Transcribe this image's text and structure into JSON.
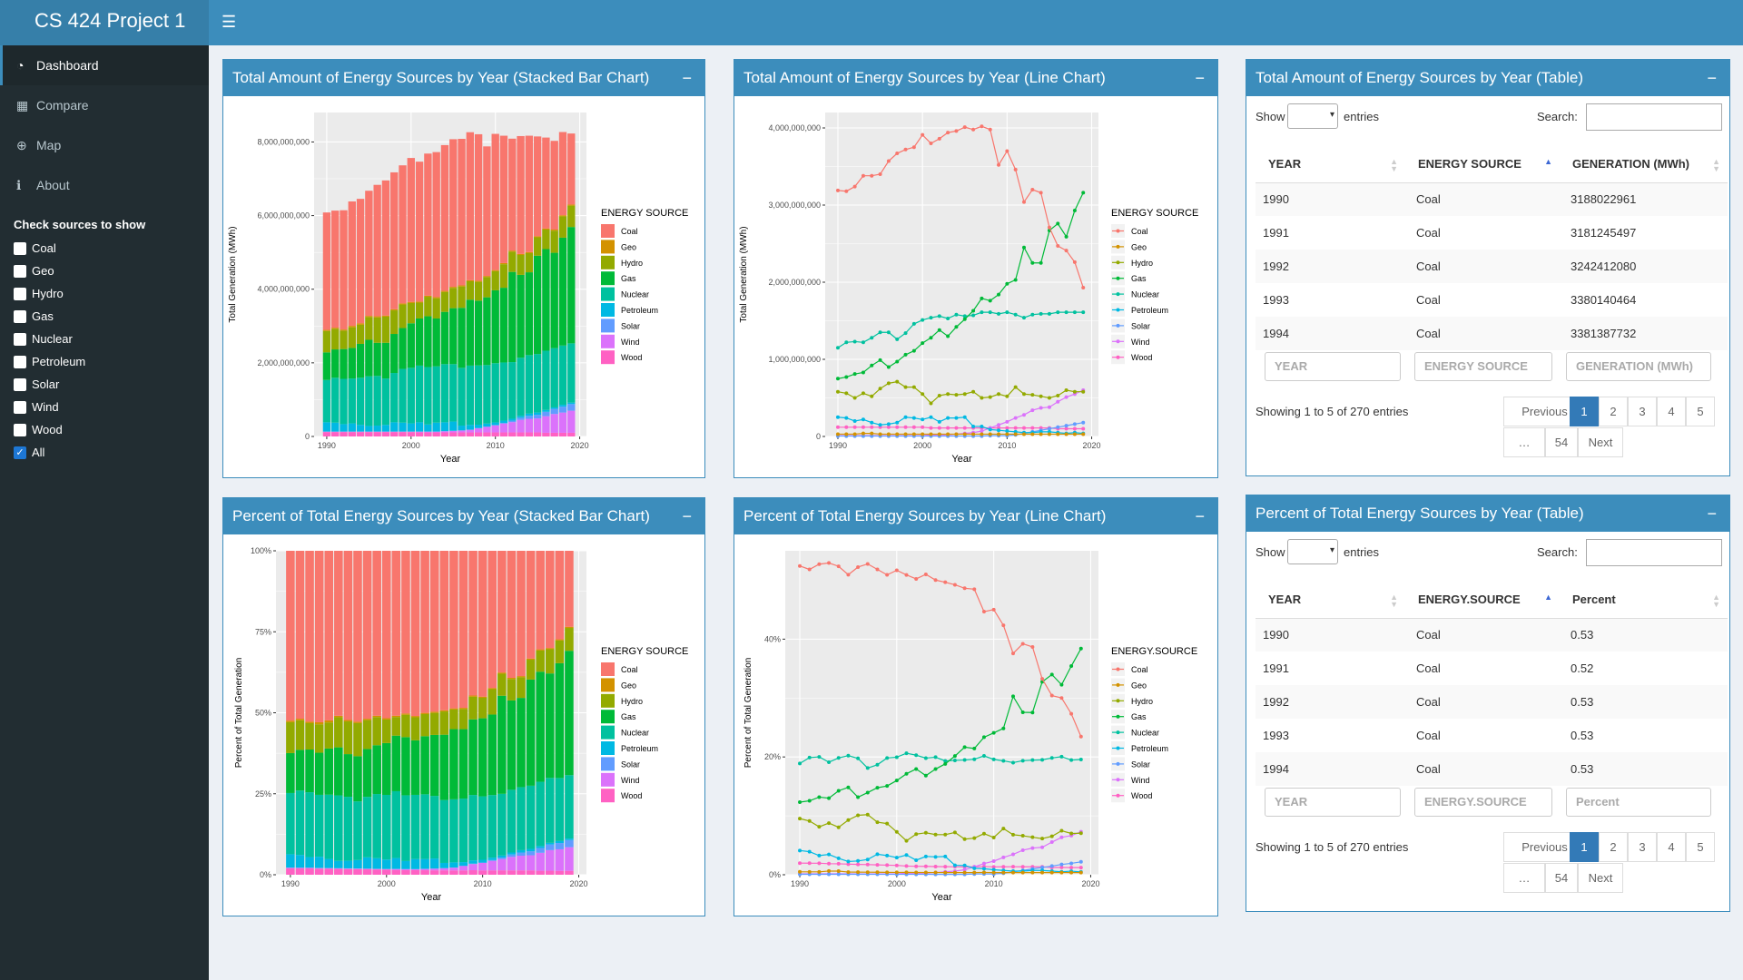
{
  "app": {
    "title": "CS 424 Project 1",
    "menu_icon": "hamburger-icon"
  },
  "sidebar": {
    "items": [
      {
        "label": "Dashboard",
        "icon": "dashboard-icon"
      },
      {
        "label": "Compare",
        "icon": "grid-icon"
      },
      {
        "label": "Map",
        "icon": "globe-icon"
      },
      {
        "label": "About",
        "icon": "info-icon"
      }
    ],
    "check_title": "Check sources to show",
    "sources": [
      {
        "label": "Coal",
        "checked": false
      },
      {
        "label": "Geo",
        "checked": false
      },
      {
        "label": "Hydro",
        "checked": false
      },
      {
        "label": "Gas",
        "checked": false
      },
      {
        "label": "Nuclear",
        "checked": false
      },
      {
        "label": "Petroleum",
        "checked": false
      },
      {
        "label": "Solar",
        "checked": false
      },
      {
        "label": "Wind",
        "checked": false
      },
      {
        "label": "Wood",
        "checked": false
      },
      {
        "label": "All",
        "checked": true
      }
    ]
  },
  "boxes": {
    "b1": "Total Amount of Energy Sources by Year (Stacked Bar Chart)",
    "b2": "Total Amount of Energy Sources by Year (Line Chart)",
    "b3": "Total Amount of Energy Sources by Year (Table)",
    "b4": "Percent of Total Energy Sources by Year (Stacked Bar Chart)",
    "b5": "Percent of Total Energy Sources by Year (Line Chart)",
    "b6": "Percent of Total Energy Sources by Year (Table)",
    "minimize": "−"
  },
  "colors": {
    "Coal": "#F8766D",
    "Geo": "#D39200",
    "Hydro": "#93AA00",
    "Gas": "#00BA38",
    "Nuclear": "#00C19F",
    "Petroleum": "#00B9E3",
    "Solar": "#619CFF",
    "Wind": "#DB72FB",
    "Wood": "#FF61C3"
  },
  "table1": {
    "show": "Show",
    "entries": "entries",
    "search": "Search:",
    "headers": [
      "YEAR",
      "ENERGY SOURCE",
      "GENERATION (MWh)"
    ],
    "rows": [
      [
        "1990",
        "Coal",
        "3188022961"
      ],
      [
        "1991",
        "Coal",
        "3181245497"
      ],
      [
        "1992",
        "Coal",
        "3242412080"
      ],
      [
        "1993",
        "Coal",
        "3380140464"
      ],
      [
        "1994",
        "Coal",
        "3381387732"
      ]
    ],
    "filters": [
      "YEAR",
      "ENERGY SOURCE",
      "GENERATION (MWh)"
    ],
    "info": "Showing 1 to 5 of 270 entries",
    "pages": [
      "Previous",
      "1",
      "2",
      "3",
      "4",
      "5",
      "…",
      "54",
      "Next"
    ]
  },
  "table2": {
    "show": "Show",
    "entries": "entries",
    "search": "Search:",
    "headers": [
      "YEAR",
      "ENERGY.SOURCE",
      "Percent"
    ],
    "rows": [
      [
        "1990",
        "Coal",
        "0.53"
      ],
      [
        "1991",
        "Coal",
        "0.52"
      ],
      [
        "1992",
        "Coal",
        "0.53"
      ],
      [
        "1993",
        "Coal",
        "0.53"
      ],
      [
        "1994",
        "Coal",
        "0.53"
      ]
    ],
    "filters": [
      "YEAR",
      "ENERGY.SOURCE",
      "Percent"
    ],
    "info": "Showing 1 to 5 of 270 entries",
    "pages": [
      "Previous",
      "1",
      "2",
      "3",
      "4",
      "5",
      "…",
      "54",
      "Next"
    ]
  },
  "chart_data": [
    {
      "id": "total_bar",
      "type": "bar",
      "stacked": true,
      "xlabel": "Year",
      "ylabel": "Total Generation (MWh)",
      "legend_title": "ENERGY SOURCE",
      "legend_position": "right",
      "ylim": [
        0,
        8800000000
      ],
      "yticks": [
        0,
        2000000000,
        4000000000,
        6000000000,
        8000000000
      ],
      "ytick_labels": [
        "0",
        "2,000,000,000",
        "4,000,000,000",
        "6,000,000,000",
        "8,000,000,000"
      ],
      "xticks": [
        1990,
        2000,
        2010,
        2020
      ],
      "years_start": 1990,
      "years_end": 2019,
      "series": [
        {
          "name": "Coal",
          "values": [
            3.19,
            3.18,
            3.24,
            3.38,
            3.38,
            3.4,
            3.57,
            3.67,
            3.72,
            3.75,
            3.91,
            3.8,
            3.86,
            3.94,
            3.96,
            4.01,
            3.98,
            4.02,
            3.98,
            3.52,
            3.7,
            3.46,
            3.04,
            3.2,
            3.16,
            2.71,
            2.47,
            2.41,
            2.26,
            1.93
          ]
        },
        {
          "name": "Geo",
          "values": [
            0.03,
            0.03,
            0.03,
            0.04,
            0.04,
            0.03,
            0.03,
            0.03,
            0.03,
            0.03,
            0.03,
            0.03,
            0.03,
            0.03,
            0.03,
            0.03,
            0.03,
            0.03,
            0.03,
            0.03,
            0.03,
            0.03,
            0.03,
            0.03,
            0.03,
            0.03,
            0.03,
            0.03,
            0.03,
            0.03
          ]
        },
        {
          "name": "Hydro",
          "values": [
            0.58,
            0.56,
            0.5,
            0.56,
            0.52,
            0.62,
            0.69,
            0.71,
            0.64,
            0.64,
            0.55,
            0.43,
            0.53,
            0.55,
            0.54,
            0.55,
            0.58,
            0.5,
            0.51,
            0.55,
            0.52,
            0.64,
            0.55,
            0.54,
            0.52,
            0.5,
            0.53,
            0.6,
            0.58,
            0.58
          ]
        },
        {
          "name": "Gas",
          "values": [
            0.75,
            0.77,
            0.81,
            0.83,
            0.92,
            0.99,
            0.9,
            0.97,
            1.06,
            1.11,
            1.21,
            1.28,
            1.38,
            1.3,
            1.42,
            1.52,
            1.63,
            1.79,
            1.76,
            1.84,
            1.98,
            2.03,
            2.45,
            2.25,
            2.25,
            2.67,
            2.76,
            2.59,
            2.93,
            3.16
          ]
        },
        {
          "name": "Nuclear",
          "values": [
            1.15,
            1.22,
            1.23,
            1.22,
            1.28,
            1.35,
            1.35,
            1.26,
            1.34,
            1.46,
            1.51,
            1.54,
            1.56,
            1.53,
            1.58,
            1.56,
            1.57,
            1.61,
            1.61,
            1.59,
            1.61,
            1.58,
            1.54,
            1.58,
            1.59,
            1.59,
            1.61,
            1.61,
            1.61,
            1.61
          ]
        },
        {
          "name": "Petroleum",
          "values": [
            0.25,
            0.24,
            0.2,
            0.22,
            0.18,
            0.15,
            0.16,
            0.18,
            0.25,
            0.24,
            0.22,
            0.25,
            0.19,
            0.24,
            0.24,
            0.25,
            0.13,
            0.13,
            0.09,
            0.08,
            0.07,
            0.06,
            0.05,
            0.05,
            0.06,
            0.06,
            0.05,
            0.04,
            0.05,
            0.04
          ]
        },
        {
          "name": "Solar",
          "values": [
            0.005,
            0.005,
            0.005,
            0.005,
            0.005,
            0.005,
            0.005,
            0.005,
            0.005,
            0.005,
            0.005,
            0.005,
            0.005,
            0.005,
            0.005,
            0.005,
            0.005,
            0.005,
            0.01,
            0.01,
            0.01,
            0.02,
            0.04,
            0.06,
            0.08,
            0.1,
            0.12,
            0.14,
            0.16,
            0.18
          ]
        },
        {
          "name": "Wind",
          "values": [
            0.01,
            0.01,
            0.01,
            0.01,
            0.01,
            0.01,
            0.01,
            0.01,
            0.01,
            0.01,
            0.01,
            0.02,
            0.02,
            0.02,
            0.03,
            0.04,
            0.05,
            0.07,
            0.11,
            0.15,
            0.19,
            0.24,
            0.28,
            0.34,
            0.37,
            0.38,
            0.45,
            0.51,
            0.55,
            0.6
          ]
        },
        {
          "name": "Wood",
          "values": [
            0.12,
            0.12,
            0.12,
            0.12,
            0.12,
            0.12,
            0.12,
            0.12,
            0.12,
            0.12,
            0.12,
            0.11,
            0.11,
            0.11,
            0.11,
            0.11,
            0.11,
            0.11,
            0.11,
            0.11,
            0.11,
            0.11,
            0.11,
            0.11,
            0.11,
            0.11,
            0.1,
            0.1,
            0.1,
            0.1
          ]
        }
      ],
      "value_scale": 1000000000
    },
    {
      "id": "total_line",
      "type": "line",
      "xlabel": "Year",
      "ylabel": "Total Generation (MWh)",
      "legend_title": "ENERGY SOURCE",
      "legend_position": "right",
      "ylim": [
        0,
        4200000000
      ],
      "yticks": [
        0,
        1000000000,
        2000000000,
        3000000000,
        4000000000
      ],
      "ytick_labels": [
        "0",
        "1,000,000,000",
        "2,000,000,000",
        "3,000,000,000",
        "4,000,000,000"
      ],
      "xticks": [
        1990,
        2000,
        2010,
        2020
      ],
      "series_ref": "total_bar"
    },
    {
      "id": "pct_bar",
      "type": "bar",
      "stacked": true,
      "xlabel": "Year",
      "ylabel": "Percent of Total Generation",
      "legend_title": "ENERGY SOURCE",
      "legend_position": "right",
      "ylim": [
        0,
        1
      ],
      "yticks": [
        0,
        0.25,
        0.5,
        0.75,
        1
      ],
      "ytick_labels": [
        "0%",
        "25%",
        "50%",
        "75%",
        "100%"
      ],
      "xticks": [
        1990,
        2000,
        2010,
        2020
      ],
      "series_ref": "total_bar",
      "normalized": true
    },
    {
      "id": "pct_line",
      "type": "line",
      "xlabel": "Year",
      "ylabel": "Percent of Total Generation",
      "legend_title": "ENERGY.SOURCE",
      "legend_position": "right",
      "ylim": [
        0,
        0.55
      ],
      "yticks": [
        0,
        0.2,
        0.4
      ],
      "ytick_labels": [
        "0%",
        "20%",
        "40%"
      ],
      "xticks": [
        1990,
        2000,
        2010,
        2020
      ],
      "series_ref": "total_bar",
      "normalized": true
    }
  ]
}
